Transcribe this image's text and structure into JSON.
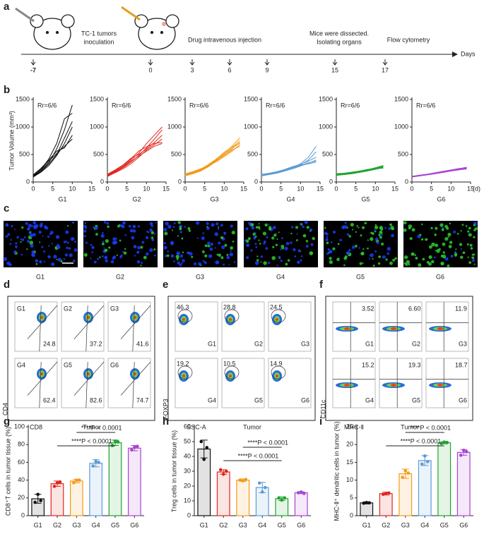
{
  "panel_labels": [
    "a",
    "b",
    "c",
    "d",
    "e",
    "f",
    "g",
    "h",
    "i"
  ],
  "timeline": {
    "unit": "Days",
    "ticks": [
      "-7",
      "0",
      "3",
      "6",
      "9",
      "15",
      "17"
    ],
    "events": [
      [
        "TC-1 tumors",
        "inoculation"
      ],
      [
        "Drug intravenous injection"
      ],
      [
        "Mice were dissected.",
        "Isolating organs"
      ],
      [
        "Flow cytometry"
      ]
    ]
  },
  "chart_data": [
    {
      "type": "line",
      "title": "G1",
      "ylabel": "Tumor Volume (mm³)",
      "note": "Rr=6/6",
      "color": "#111111",
      "x": [
        0,
        2,
        4,
        6,
        8,
        10,
        12,
        14
      ],
      "xlim": [
        0,
        15
      ],
      "xticks": [
        0,
        5,
        10,
        15
      ],
      "ylim": [
        0,
        1500
      ],
      "yticks": [
        0,
        500,
        1000,
        1500
      ],
      "series": [
        {
          "values": [
            100,
            200,
            350,
            600,
            950,
            1400,
            null,
            null
          ]
        },
        {
          "values": [
            120,
            230,
            420,
            700,
            1150,
            1250,
            null,
            null
          ]
        },
        {
          "values": [
            90,
            180,
            300,
            480,
            700,
            1000,
            null,
            null
          ]
        },
        {
          "values": [
            110,
            220,
            380,
            520,
            650,
            780,
            null,
            null
          ]
        },
        {
          "values": [
            130,
            250,
            400,
            560,
            620,
            850,
            null,
            null
          ]
        },
        {
          "values": [
            100,
            190,
            330,
            500,
            800,
            1100,
            null,
            null
          ]
        }
      ]
    },
    {
      "type": "line",
      "title": "G2",
      "note": "Rr=6/6",
      "color": "#e0261c",
      "x": [
        0,
        2,
        4,
        6,
        8,
        10,
        12,
        14
      ],
      "xlim": [
        0,
        15
      ],
      "xticks": [
        0,
        5,
        10,
        15
      ],
      "ylim": [
        0,
        1500
      ],
      "yticks": [
        0,
        500,
        1000,
        1500
      ],
      "series": [
        {
          "values": [
            120,
            200,
            280,
            400,
            520,
            700,
            850,
            1000
          ]
        },
        {
          "values": [
            110,
            180,
            260,
            360,
            480,
            620,
            780,
            950
          ]
        },
        {
          "values": [
            130,
            210,
            300,
            420,
            560,
            640,
            700,
            720
          ]
        },
        {
          "values": [
            100,
            170,
            240,
            330,
            450,
            580,
            680,
            780
          ]
        },
        {
          "values": [
            140,
            220,
            310,
            430,
            500,
            600,
            720,
            850
          ]
        },
        {
          "values": [
            115,
            190,
            270,
            380,
            470,
            560,
            650,
            700
          ]
        }
      ]
    },
    {
      "type": "line",
      "title": "G3",
      "note": "Rr=6/6",
      "color": "#f39a1a",
      "x": [
        0,
        2,
        4,
        6,
        8,
        10,
        12,
        14
      ],
      "xlim": [
        0,
        15
      ],
      "xticks": [
        0,
        5,
        10,
        15
      ],
      "ylim": [
        0,
        1500
      ],
      "yticks": [
        0,
        500,
        1000,
        1500
      ],
      "series": [
        {
          "values": [
            130,
            170,
            220,
            300,
            400,
            520,
            650,
            800
          ]
        },
        {
          "values": [
            110,
            150,
            200,
            280,
            380,
            500,
            620,
            750
          ]
        },
        {
          "values": [
            140,
            180,
            230,
            320,
            420,
            540,
            640,
            700
          ]
        },
        {
          "values": [
            120,
            160,
            210,
            290,
            390,
            480,
            580,
            650
          ]
        },
        {
          "values": [
            150,
            190,
            240,
            310,
            410,
            500,
            600,
            720
          ]
        },
        {
          "values": [
            125,
            165,
            215,
            295,
            370,
            460,
            560,
            680
          ]
        }
      ]
    },
    {
      "type": "line",
      "title": "G4",
      "note": "Rr=6/6",
      "color": "#5b9bd5",
      "x": [
        0,
        2,
        4,
        6,
        8,
        10,
        12,
        14
      ],
      "xlim": [
        0,
        15
      ],
      "xticks": [
        0,
        5,
        10,
        15
      ],
      "ylim": [
        0,
        1500
      ],
      "yticks": [
        0,
        500,
        1000,
        1500
      ],
      "series": [
        {
          "values": [
            130,
            150,
            180,
            220,
            270,
            330,
            450,
            650
          ]
        },
        {
          "values": [
            120,
            140,
            170,
            210,
            260,
            310,
            400,
            550
          ]
        },
        {
          "values": [
            140,
            160,
            190,
            230,
            280,
            320,
            380,
            450
          ]
        },
        {
          "values": [
            110,
            135,
            160,
            200,
            240,
            290,
            340,
            400
          ]
        },
        {
          "values": [
            125,
            145,
            175,
            215,
            255,
            300,
            350,
            380
          ]
        },
        {
          "values": [
            135,
            155,
            185,
            225,
            265,
            305,
            330,
            360
          ]
        }
      ]
    },
    {
      "type": "line",
      "title": "G5",
      "note": "Rr=6/6",
      "color": "#1fa32e",
      "x": [
        0,
        2,
        4,
        6,
        8,
        10,
        12,
        14
      ],
      "xlim": [
        0,
        15
      ],
      "xticks": [
        0,
        5,
        10,
        15
      ],
      "ylim": [
        0,
        1500
      ],
      "yticks": [
        0,
        500,
        1000,
        1500
      ],
      "series": [
        {
          "values": [
            140,
            150,
            170,
            190,
            220,
            260,
            300,
            null
          ]
        },
        {
          "values": [
            130,
            145,
            160,
            180,
            210,
            240,
            280,
            null
          ]
        },
        {
          "values": [
            150,
            160,
            180,
            200,
            230,
            250,
            270,
            null
          ]
        },
        {
          "values": [
            120,
            135,
            150,
            175,
            200,
            230,
            260,
            null
          ]
        },
        {
          "values": [
            135,
            150,
            165,
            185,
            215,
            245,
            290,
            null
          ]
        },
        {
          "values": [
            145,
            155,
            175,
            195,
            225,
            255,
            250,
            null
          ]
        }
      ]
    },
    {
      "type": "line",
      "title": "G6",
      "note": "Rr=6/6",
      "unit": "(d)",
      "color": "#a845d0",
      "x": [
        0,
        2,
        4,
        6,
        8,
        10,
        12,
        14
      ],
      "xlim": [
        0,
        15
      ],
      "xticks": [
        0,
        5,
        10,
        15
      ],
      "ylim": [
        0,
        1500
      ],
      "yticks": [
        0,
        500,
        1000,
        1500
      ],
      "series": [
        {
          "values": [
            100,
            120,
            140,
            165,
            190,
            215,
            240,
            270
          ]
        },
        {
          "values": [
            95,
            115,
            135,
            160,
            185,
            205,
            230,
            250
          ]
        },
        {
          "values": [
            105,
            125,
            145,
            170,
            195,
            220,
            245,
            260
          ]
        },
        {
          "values": [
            90,
            110,
            130,
            150,
            175,
            200,
            220,
            240
          ]
        },
        {
          "values": [
            100,
            118,
            138,
            158,
            180,
            205,
            228,
            255
          ]
        },
        {
          "values": [
            98,
            116,
            136,
            155,
            178,
            200,
            225,
            235
          ]
        }
      ]
    },
    {
      "type": "bar",
      "ylabel": "CD8⁺T cells in tumor tissue (%)",
      "categories": [
        "G1",
        "G2",
        "G3",
        "G4",
        "G5",
        "G6"
      ],
      "colors": [
        "#111111",
        "#e0261c",
        "#f39a1a",
        "#5b9bd5",
        "#1fa32e",
        "#a845d0"
      ],
      "values": [
        19,
        36,
        39,
        59,
        82,
        76
      ],
      "errors": [
        5,
        3,
        2,
        4,
        3,
        3
      ],
      "points": [
        [
          15,
          24,
          17
        ],
        [
          33,
          37,
          38
        ],
        [
          37,
          40,
          40
        ],
        [
          56,
          61,
          60
        ],
        [
          79,
          84,
          83
        ],
        [
          74,
          77,
          78
        ]
      ],
      "ylim": [
        0,
        100
      ],
      "yticks": [
        0,
        20,
        40,
        60,
        80,
        100
      ],
      "comparisons": [
        {
          "label": "****P < 0.0001",
          "groups": [
            "G3",
            "G5"
          ]
        },
        {
          "label": "****P < 0.0001",
          "groups": [
            "G2",
            "G5"
          ]
        }
      ]
    },
    {
      "type": "bar",
      "ylabel": "Treg cells in tumor tissue (%)",
      "categories": [
        "G1",
        "G2",
        "G3",
        "G4",
        "G5",
        "G6"
      ],
      "colors": [
        "#111111",
        "#e0261c",
        "#f39a1a",
        "#5b9bd5",
        "#1fa32e",
        "#a845d0"
      ],
      "values": [
        45,
        29.5,
        24,
        19,
        11.5,
        15.5
      ],
      "errors": [
        6,
        1.5,
        0.8,
        3.5,
        1.2,
        0.6
      ],
      "points": [
        [
          50,
          38,
          46
        ],
        [
          31,
          28,
          30
        ],
        [
          24,
          23.5,
          24.5
        ],
        [
          22,
          16,
          19
        ],
        [
          12,
          10.5,
          12
        ],
        [
          15.5,
          16,
          15
        ]
      ],
      "ylim": [
        0,
        60
      ],
      "yticks": [
        0,
        10,
        20,
        30,
        40,
        50,
        60
      ],
      "comparisons": [
        {
          "label": "****P < 0.0001",
          "groups": [
            "G3",
            "G5"
          ]
        },
        {
          "label": "****P < 0.0001",
          "groups": [
            "G2",
            "G5"
          ]
        }
      ]
    },
    {
      "type": "bar",
      "ylabel": "MHC-Ⅱ⁺ dendritic cells in tumor (%)",
      "categories": [
        "G1",
        "G2",
        "G3",
        "G4",
        "G5",
        "G6"
      ],
      "colors": [
        "#111111",
        "#e0261c",
        "#f39a1a",
        "#5b9bd5",
        "#1fa32e",
        "#a845d0"
      ],
      "values": [
        3.6,
        6.2,
        11.8,
        15.5,
        20.5,
        17.8
      ],
      "errors": [
        0.3,
        0.4,
        1.3,
        1.4,
        0.3,
        0.8
      ],
      "points": [
        [
          3.5,
          3.7,
          3.6
        ],
        [
          6,
          6.3,
          6.4
        ],
        [
          10.8,
          12.6,
          12
        ],
        [
          14.5,
          16.8,
          15.2
        ],
        [
          20.3,
          20.7,
          20.6
        ],
        [
          17,
          18.4,
          18
        ]
      ],
      "ylim": [
        0,
        25
      ],
      "yticks": [
        0,
        5,
        10,
        15,
        20,
        25
      ],
      "comparisons": [
        {
          "label": "****P < 0.0001",
          "groups": [
            "G3",
            "G5"
          ]
        },
        {
          "label": "****P < 0.0001",
          "groups": [
            "G2",
            "G5"
          ]
        }
      ]
    }
  ],
  "images": {
    "groups": [
      "G1",
      "G2",
      "G3",
      "G4",
      "G5",
      "G6"
    ]
  },
  "flow": [
    {
      "y_axis": "CD4",
      "x_axis": "CD8",
      "caption": "Tumor",
      "cells": [
        [
          "G1",
          "24.8"
        ],
        [
          "G2",
          "37.2"
        ],
        [
          "G3",
          "41.6"
        ],
        [
          "G4",
          "62.4"
        ],
        [
          "G5",
          "82.6"
        ],
        [
          "G6",
          "74.7"
        ]
      ]
    },
    {
      "y_axis": "FOXP3",
      "x_axis": "SSC-A",
      "caption": "Tumor",
      "cells": [
        [
          "G1",
          "46.3"
        ],
        [
          "G2",
          "28.8"
        ],
        [
          "G3",
          "24.5"
        ],
        [
          "G4",
          "19.2"
        ],
        [
          "G5",
          "10.5"
        ],
        [
          "G6",
          "14.9"
        ]
      ]
    },
    {
      "y_axis": "CD11c",
      "x_axis": "MHC-Ⅱ",
      "caption": "Tumor",
      "cells": [
        [
          "G1",
          "3.52"
        ],
        [
          "G2",
          "6.60"
        ],
        [
          "G3",
          "11.9"
        ],
        [
          "G4",
          "15.2"
        ],
        [
          "G5",
          "19.3"
        ],
        [
          "G6",
          "18.7"
        ]
      ]
    }
  ]
}
